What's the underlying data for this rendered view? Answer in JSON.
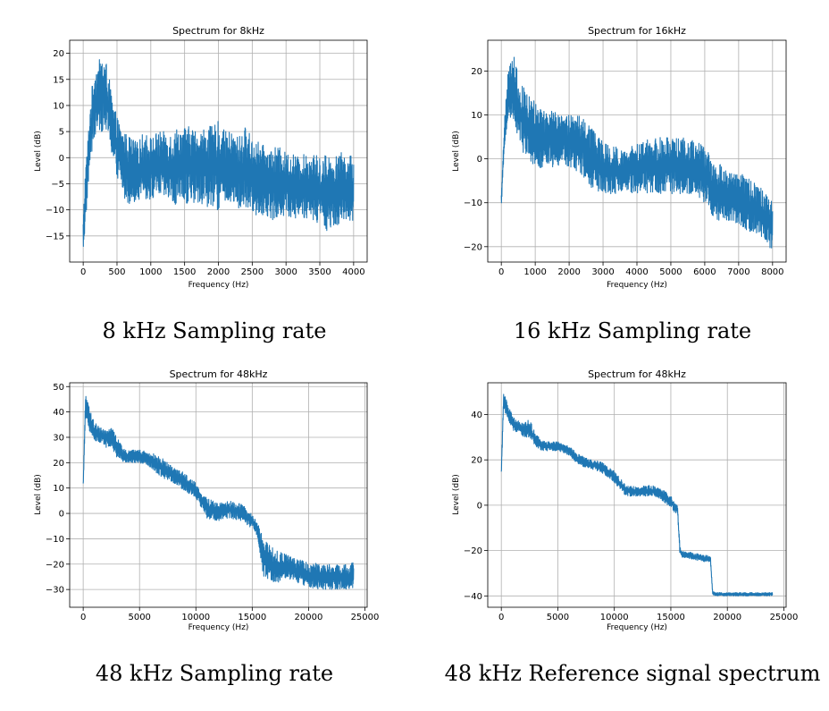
{
  "colors": {
    "series": "#1f77b4"
  },
  "chart_data": [
    {
      "type": "line",
      "title": "Spectrum for 8kHz",
      "xlabel": "Frequency (Hz)",
      "ylabel": "Level (dB)",
      "xlim": [
        -200,
        4200
      ],
      "ylim": [
        -20,
        22.5
      ],
      "xticks": [
        0,
        500,
        1000,
        1500,
        2000,
        2500,
        3000,
        3500,
        4000
      ],
      "yticks": [
        -15,
        -10,
        -5,
        0,
        5,
        10,
        15,
        20
      ],
      "xtick_labels": [
        "0",
        "500",
        "1000",
        "1500",
        "2000",
        "2500",
        "3000",
        "3500",
        "4000"
      ],
      "ytick_labels": [
        "−15",
        "−10",
        "−5",
        "0",
        "5",
        "10",
        "15",
        "20"
      ],
      "envelope": {
        "x": [
          0,
          30,
          60,
          100,
          150,
          200,
          250,
          300,
          350,
          400,
          450,
          500,
          550,
          600,
          700,
          800,
          900,
          1000,
          1100,
          1200,
          1300,
          1400,
          1500,
          1600,
          1700,
          1800,
          1900,
          2000,
          2100,
          2200,
          2300,
          2400,
          2500,
          2600,
          2700,
          2800,
          2900,
          3000,
          3100,
          3200,
          3300,
          3400,
          3500,
          3600,
          3700,
          3800,
          3900,
          4000
        ],
        "upper": [
          -12,
          -2,
          2,
          10,
          16,
          18,
          19,
          19.5,
          18,
          14,
          10,
          8,
          6,
          5,
          4,
          3,
          5,
          4,
          5,
          5,
          5,
          6,
          6,
          6,
          5,
          6,
          6,
          7,
          5,
          5,
          4,
          6,
          4,
          3,
          2,
          2,
          2,
          1,
          1,
          0,
          1,
          1,
          0,
          1,
          0,
          1,
          1,
          0
        ],
        "lower": [
          -18,
          -14,
          -8,
          -2,
          3,
          4,
          5,
          5,
          4,
          2,
          -2,
          -4,
          -5,
          -8,
          -9,
          -8,
          -8,
          -8,
          -8,
          -8,
          -9,
          -10,
          -9,
          -9,
          -9,
          -9,
          -10,
          -10,
          -9,
          -9,
          -10,
          -10,
          -11,
          -11,
          -11,
          -12,
          -12,
          -11,
          -12,
          -11,
          -12,
          -12,
          -13,
          -14,
          -13,
          -13,
          -13,
          -12
        ]
      },
      "caption": "8 kHz Sampling rate"
    },
    {
      "type": "line",
      "title": "Spectrum for 16kHz",
      "xlabel": "Frequency (Hz)",
      "ylabel": "Level (dB)",
      "xlim": [
        -400,
        8400
      ],
      "ylim": [
        -23.5,
        27
      ],
      "xticks": [
        0,
        1000,
        2000,
        3000,
        4000,
        5000,
        6000,
        7000,
        8000
      ],
      "yticks": [
        -20,
        -10,
        0,
        10,
        20
      ],
      "xtick_labels": [
        "0",
        "1000",
        "2000",
        "3000",
        "4000",
        "5000",
        "6000",
        "7000",
        "8000"
      ],
      "ytick_labels": [
        "−20",
        "−10",
        "0",
        "10",
        "20"
      ],
      "envelope": {
        "x": [
          0,
          50,
          100,
          200,
          300,
          400,
          500,
          700,
          900,
          1100,
          1300,
          1500,
          1700,
          1900,
          2100,
          2300,
          2500,
          2700,
          3000,
          3300,
          3600,
          3900,
          4200,
          4500,
          4800,
          5100,
          5400,
          5700,
          6000,
          6200,
          6400,
          6600,
          6800,
          7000,
          7200,
          7400,
          7600,
          7800,
          8000
        ],
        "upper": [
          -8,
          2,
          10,
          20,
          24,
          23,
          19,
          16,
          14,
          12,
          11,
          11,
          10,
          10,
          10,
          11,
          9,
          7,
          4,
          3,
          2,
          3,
          4,
          5,
          5,
          5,
          5,
          4,
          3,
          0,
          -1,
          -2,
          -3,
          -3,
          -4,
          -5,
          -6,
          -8,
          -10
        ],
        "lower": [
          -11,
          -5,
          3,
          8,
          9,
          8,
          4,
          0,
          -1,
          -2,
          -2,
          -2,
          -2,
          -2,
          -3,
          -3,
          -5,
          -7,
          -8,
          -8,
          -8,
          -8,
          -8,
          -8,
          -8,
          -8,
          -8,
          -8,
          -10,
          -13,
          -15,
          -14,
          -15,
          -15,
          -16,
          -17,
          -17,
          -19,
          -21
        ]
      },
      "caption": "16 kHz Sampling rate"
    },
    {
      "type": "line",
      "title": "Spectrum for 48kHz",
      "xlabel": "Frequency (Hz)",
      "ylabel": "Level (dB)",
      "xlim": [
        -1200,
        25200
      ],
      "ylim": [
        -37,
        51.5
      ],
      "xticks": [
        0,
        5000,
        10000,
        15000,
        20000,
        25000
      ],
      "yticks": [
        -30,
        -20,
        -10,
        0,
        10,
        20,
        30,
        40,
        50
      ],
      "xtick_labels": [
        "0",
        "5000",
        "10000",
        "15000",
        "20000",
        "25000"
      ],
      "ytick_labels": [
        "−30",
        "−20",
        "−10",
        "0",
        "10",
        "20",
        "30",
        "40",
        "50"
      ],
      "envelope": {
        "x": [
          0,
          200,
          400,
          800,
          1200,
          1600,
          2000,
          2500,
          3000,
          3500,
          4000,
          5000,
          6000,
          7000,
          8000,
          9000,
          10000,
          10500,
          11000,
          12000,
          13000,
          14000,
          15000,
          15500,
          16000,
          17000,
          18000,
          19000,
          20000,
          21000,
          22000,
          23000,
          24000
        ],
        "upper": [
          12,
          47,
          44,
          38,
          35,
          34,
          33,
          34,
          30,
          26,
          25,
          25,
          24,
          22,
          18,
          16,
          12,
          8,
          6,
          4,
          5,
          4,
          0,
          -4,
          -10,
          -14,
          -16,
          -18,
          -19,
          -20,
          -20,
          -20,
          -19
        ],
        "lower": [
          10,
          38,
          34,
          30,
          28,
          28,
          26,
          26,
          22,
          20,
          20,
          20,
          18,
          14,
          12,
          9,
          6,
          2,
          -2,
          -3,
          -2,
          -3,
          -6,
          -10,
          -25,
          -28,
          -26,
          -28,
          -29,
          -30,
          -30,
          -30,
          -30
        ]
      },
      "caption": "48 kHz Sampling rate"
    },
    {
      "type": "line",
      "title": "Spectrum for 48kHz",
      "xlabel": "Frequency (Hz)",
      "ylabel": "Level (dB)",
      "xlim": [
        -1200,
        25200
      ],
      "ylim": [
        -45,
        54
      ],
      "xticks": [
        0,
        5000,
        10000,
        15000,
        20000,
        25000
      ],
      "yticks": [
        -40,
        -20,
        0,
        20,
        40
      ],
      "xtick_labels": [
        "0",
        "5000",
        "10000",
        "15000",
        "20000",
        "25000"
      ],
      "ytick_labels": [
        "−40",
        "−20",
        "0",
        "20",
        "40"
      ],
      "envelope": {
        "x": [
          0,
          200,
          400,
          800,
          1200,
          1600,
          2000,
          2500,
          3000,
          3500,
          4000,
          5000,
          6000,
          7000,
          8000,
          9000,
          10000,
          10500,
          11000,
          12000,
          13000,
          14000,
          15000,
          15600,
          15800,
          16000,
          17000,
          18000,
          18500,
          18700,
          19000,
          20000,
          21000,
          22000,
          23000,
          24000
        ],
        "upper": [
          15,
          50,
          47,
          42,
          38,
          37,
          36,
          38,
          32,
          29,
          28,
          28,
          26,
          22,
          20,
          19,
          15,
          12,
          9,
          8,
          9,
          8,
          4,
          0,
          -18,
          -20,
          -21,
          -22,
          -22,
          -38,
          -38.5,
          -38.5,
          -38.5,
          -38.5,
          -38.5,
          -38.5
        ],
        "lower": [
          13,
          42,
          40,
          35,
          32,
          32,
          30,
          30,
          26,
          24,
          24,
          24,
          22,
          17,
          16,
          14,
          10,
          7,
          4,
          4,
          4,
          3,
          -1,
          -5,
          -22,
          -23,
          -24,
          -25,
          -25,
          -39.5,
          -40,
          -40,
          -40,
          -40,
          -40,
          -40
        ]
      },
      "caption": "48 kHz Reference signal spectrum"
    }
  ]
}
